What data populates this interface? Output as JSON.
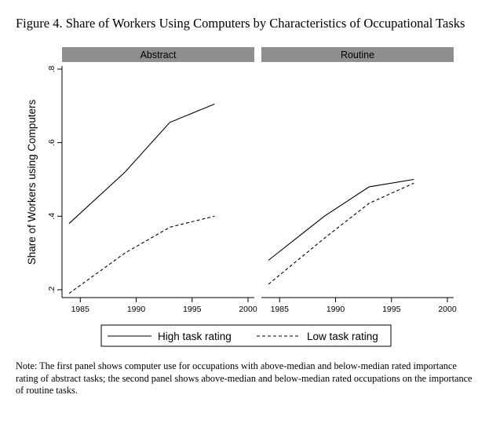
{
  "figure": {
    "title": "Figure 4. Share of Workers Using Computers by Characteristics of Occupational Tasks",
    "note": "Note: The first panel shows computer use for occupations with above-median and below-median rated importance rating of abstract tasks; the second panel shows above-median and below-median rated occupations on the importance of routine tasks."
  },
  "chart_data": {
    "type": "line",
    "ylabel": "Share of Workers using Computers",
    "ylim": [
      0.2,
      0.8
    ],
    "yticks": [
      0.2,
      0.4,
      0.6,
      0.8
    ],
    "ytick_labels": [
      ".2",
      ".4",
      ".6",
      ".8"
    ],
    "xlim": [
      1984,
      2000
    ],
    "xticks": [
      1985,
      1990,
      1995,
      2000
    ],
    "xtick_labels": [
      "1985",
      "1990",
      "1995",
      "2000"
    ],
    "grid": false,
    "legend": {
      "position": "bottom"
    },
    "panels": [
      {
        "title": "Abstract",
        "series": [
          {
            "name": "High task rating",
            "style": "solid",
            "x": [
              1984,
              1989,
              1993,
              1997
            ],
            "y": [
              0.38,
              0.52,
              0.655,
              0.705
            ]
          },
          {
            "name": "Low task rating",
            "style": "dashed",
            "x": [
              1984,
              1989,
              1993,
              1997
            ],
            "y": [
              0.19,
              0.3,
              0.37,
              0.4
            ]
          }
        ]
      },
      {
        "title": "Routine",
        "series": [
          {
            "name": "High task rating",
            "style": "solid",
            "x": [
              1984,
              1989,
              1993,
              1997
            ],
            "y": [
              0.28,
              0.4,
              0.48,
              0.5
            ]
          },
          {
            "name": "Low task rating",
            "style": "dashed",
            "x": [
              1984,
              1989,
              1993,
              1997
            ],
            "y": [
              0.215,
              0.34,
              0.435,
              0.49
            ]
          }
        ]
      }
    ]
  }
}
